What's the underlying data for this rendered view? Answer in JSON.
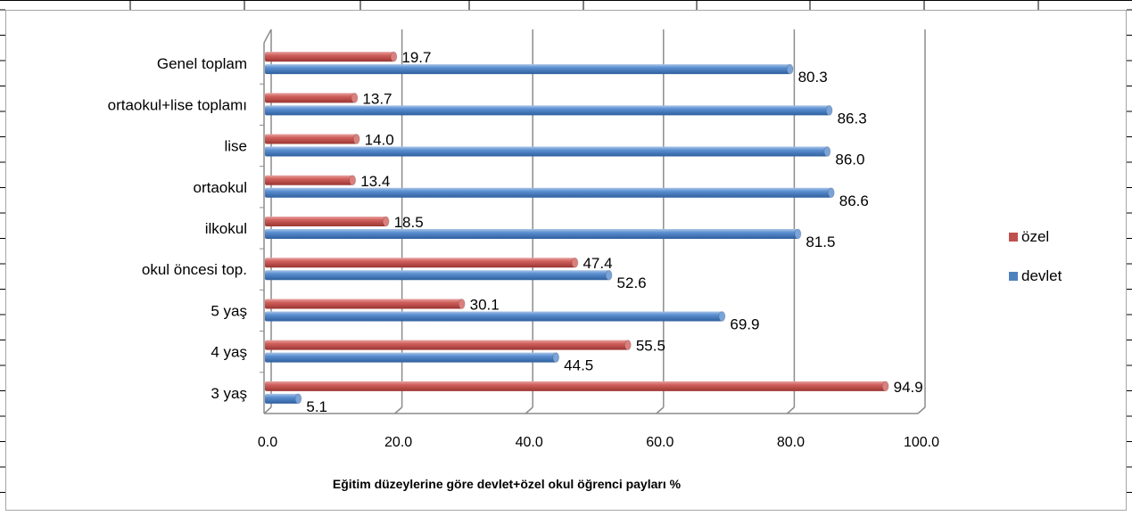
{
  "colors": {
    "ozel": "#c0504d",
    "devlet": "#4f81bd",
    "gridline": "#8c8c8c",
    "sheet_grid": "#000000"
  },
  "chart_data": {
    "type": "bar",
    "orientation": "horizontal",
    "style": "3d-cylinder-bars",
    "title": "Eğitim düzeylerine göre devlet+özel okul öğrenci payları %",
    "xlabel": "",
    "ylabel": "",
    "xlim": [
      0,
      100
    ],
    "xticks": [
      "0.0",
      "20.0",
      "40.0",
      "60.0",
      "80.0",
      "100.0"
    ],
    "categories": [
      "Genel toplam",
      "ortaokul+lise toplamı",
      "lise",
      "ortaokul",
      "ilkokul",
      "okul öncesi top.",
      "5 yaş",
      "4 yaş",
      "3 yaş"
    ],
    "series": [
      {
        "name": "özel",
        "values": [
          19.7,
          13.7,
          14.0,
          13.4,
          18.5,
          47.4,
          30.1,
          55.5,
          94.9
        ],
        "labels": [
          "19.7",
          "13.7",
          "14.0",
          "13.4",
          "18.5",
          "47.4",
          "30.1",
          "55.5",
          "94.9"
        ]
      },
      {
        "name": "devlet",
        "values": [
          80.3,
          86.3,
          86.0,
          86.6,
          81.5,
          52.6,
          69.9,
          44.5,
          5.1
        ],
        "labels": [
          "80.3",
          "86.3",
          "86.0",
          "86.6",
          "81.5",
          "52.6",
          "69.9",
          "44.5",
          "5.1"
        ]
      }
    ],
    "legend_position": "right",
    "grid": true
  }
}
